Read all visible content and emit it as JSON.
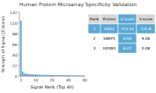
{
  "chart_data": {
    "type": "bar",
    "title": "Human Protein Microarray Specificity Validation",
    "xlabel": "Signal Rank (Top 40)",
    "ylabel": "Strength of Signal (Z score)",
    "x": [
      1,
      2,
      3,
      4,
      5,
      6,
      7,
      8,
      9,
      10,
      11,
      12,
      13,
      14,
      15,
      16,
      17,
      18,
      19,
      20,
      21,
      22,
      23,
      24,
      25,
      26,
      27,
      28,
      29,
      30,
      31,
      32,
      33,
      34,
      35,
      36,
      37,
      38,
      39,
      40
    ],
    "values": [
      115.14,
      9.5,
      6.27,
      5.2,
      4.8,
      4.3,
      4.0,
      3.8,
      3.6,
      3.4,
      3.2,
      3.0,
      2.9,
      2.8,
      2.7,
      2.6,
      2.5,
      2.4,
      2.3,
      2.2,
      2.1,
      2.0,
      1.95,
      1.9,
      1.85,
      1.8,
      1.75,
      1.7,
      1.65,
      1.6,
      1.55,
      1.5,
      1.45,
      1.4,
      1.35,
      1.3,
      1.25,
      1.2,
      1.15,
      1.1
    ],
    "color": "#5ba8d4",
    "xlim": [
      0,
      40
    ],
    "xticks": [
      1,
      10,
      20,
      30,
      40
    ],
    "ylim": [
      0,
      132
    ],
    "yticks": [
      0,
      22,
      44,
      66,
      88,
      110,
      132
    ],
    "grid": false,
    "table": {
      "columns": [
        "Rank",
        "Protein",
        "Z score",
        "S score"
      ],
      "rows": [
        [
          "1",
          "SOD1",
          "115.14",
          "121.8"
        ],
        [
          "2",
          "SNRP1",
          "9.50",
          "9.06"
        ],
        [
          "3",
          "HOXB3",
          "6.27",
          "0.08"
        ]
      ]
    }
  }
}
